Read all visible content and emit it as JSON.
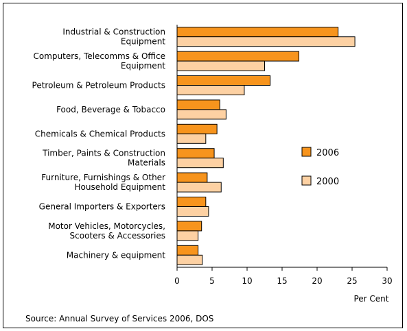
{
  "chart_data": {
    "type": "bar",
    "orientation": "horizontal",
    "categories": [
      [
        "Industrial & Construction",
        "Equipment"
      ],
      [
        "Computers, Telecomms & Office",
        "Equipment"
      ],
      [
        "Petroleum & Petroleum Products"
      ],
      [
        "Food, Beverage & Tobacco"
      ],
      [
        "Chemicals & Chemical Products"
      ],
      [
        "Timber, Paints & Construction",
        "Materials"
      ],
      [
        "Furniture, Furnishings & Other",
        "Household Equipment"
      ],
      [
        "General Importers & Exporters"
      ],
      [
        "Motor Vehicles, Motorcycles,",
        "Scooters & Accessories"
      ],
      [
        "Machinery & equipment"
      ]
    ],
    "series": [
      {
        "name": "2006",
        "color": "#f7941d",
        "values": [
          23.0,
          17.4,
          13.3,
          6.1,
          5.7,
          5.3,
          4.3,
          4.1,
          3.5,
          3.0
        ]
      },
      {
        "name": "2000",
        "color": "#fdd1a3",
        "values": [
          25.4,
          12.5,
          9.6,
          7.0,
          4.1,
          6.6,
          6.3,
          4.5,
          3.0,
          3.6
        ]
      }
    ],
    "xlim": [
      0,
      30
    ],
    "xticks": [
      "0",
      "5",
      "10",
      "15",
      "20",
      "25",
      "30"
    ],
    "xlabel": "Per Cent",
    "legend_position": "right",
    "source": "Source: Annual Survey of Services 2006, DOS"
  }
}
